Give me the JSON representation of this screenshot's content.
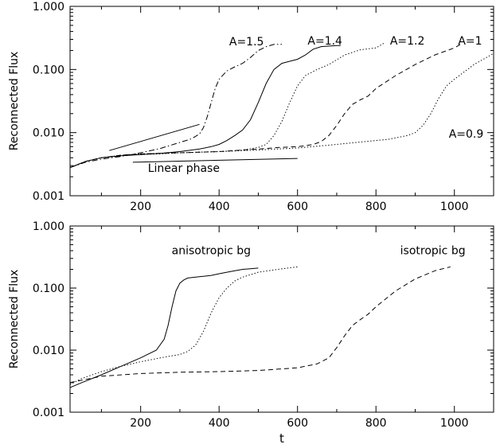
{
  "chart_data": [
    {
      "type": "line",
      "title": "",
      "xlabel": "",
      "ylabel": "Reconnected Flux",
      "yscale": "log",
      "xlim": [
        20,
        1100
      ],
      "ylim": [
        0.001,
        1.0
      ],
      "xticks": [
        200,
        400,
        600,
        800,
        1000
      ],
      "xtick_labels": [
        "200",
        "400",
        "600",
        "800",
        "1000"
      ],
      "yticks": [
        0.001,
        0.01,
        0.1,
        1.0
      ],
      "ytick_labels": [
        "0.001",
        "0.010",
        "0.100",
        "1.000"
      ],
      "grid": false,
      "series": [
        {
          "name": "A=1.5",
          "style": "dashdot",
          "x": [
            20,
            60,
            100,
            150,
            200,
            250,
            300,
            330,
            350,
            360,
            370,
            380,
            390,
            400,
            420,
            440,
            460,
            480,
            500,
            520,
            540,
            560
          ],
          "y": [
            0.0028,
            0.0034,
            0.0038,
            0.0042,
            0.0048,
            0.0056,
            0.007,
            0.008,
            0.0095,
            0.012,
            0.018,
            0.03,
            0.05,
            0.07,
            0.095,
            0.11,
            0.125,
            0.155,
            0.2,
            0.23,
            0.25,
            0.25
          ]
        },
        {
          "name": "A=1.4",
          "style": "solid",
          "x": [
            20,
            60,
            100,
            150,
            200,
            250,
            300,
            350,
            380,
            400,
            420,
            440,
            460,
            480,
            500,
            520,
            540,
            560,
            580,
            600,
            620,
            640,
            660,
            680,
            700,
            710
          ],
          "y": [
            0.0028,
            0.0035,
            0.004,
            0.0043,
            0.0045,
            0.0047,
            0.005,
            0.0055,
            0.006,
            0.0065,
            0.0075,
            0.009,
            0.011,
            0.016,
            0.03,
            0.06,
            0.1,
            0.125,
            0.135,
            0.145,
            0.17,
            0.21,
            0.23,
            0.235,
            0.24,
            0.24
          ]
        },
        {
          "name": "A=1.2",
          "style": "dotted",
          "x": [
            20,
            60,
            100,
            150,
            200,
            250,
            300,
            350,
            400,
            450,
            500,
            520,
            540,
            560,
            580,
            600,
            620,
            650,
            680,
            720,
            760,
            800,
            820
          ],
          "y": [
            0.0028,
            0.0035,
            0.004,
            0.0043,
            0.0045,
            0.0046,
            0.0048,
            0.0049,
            0.005,
            0.0052,
            0.0058,
            0.0065,
            0.009,
            0.015,
            0.03,
            0.055,
            0.08,
            0.1,
            0.12,
            0.17,
            0.205,
            0.22,
            0.26
          ]
        },
        {
          "name": "A=1",
          "style": "dashed",
          "x": [
            20,
            60,
            100,
            150,
            200,
            300,
            400,
            500,
            550,
            600,
            620,
            640,
            660,
            680,
            700,
            720,
            740,
            760,
            780,
            800,
            850,
            900,
            950,
            1000,
            1020
          ],
          "y": [
            0.0028,
            0.0035,
            0.004,
            0.0044,
            0.0046,
            0.0048,
            0.005,
            0.0055,
            0.0058,
            0.006,
            0.0062,
            0.0065,
            0.0072,
            0.009,
            0.013,
            0.02,
            0.028,
            0.033,
            0.038,
            0.05,
            0.08,
            0.12,
            0.17,
            0.22,
            0.26
          ]
        },
        {
          "name": "A=0.9",
          "style": "dotted",
          "x": [
            20,
            60,
            100,
            150,
            200,
            300,
            400,
            500,
            600,
            700,
            750,
            800,
            830,
            860,
            880,
            900,
            920,
            940,
            960,
            980,
            1000,
            1050,
            1100
          ],
          "y": [
            0.0028,
            0.0035,
            0.004,
            0.0044,
            0.0046,
            0.0048,
            0.005,
            0.0053,
            0.0057,
            0.0065,
            0.007,
            0.0075,
            0.0078,
            0.0085,
            0.009,
            0.01,
            0.013,
            0.02,
            0.035,
            0.055,
            0.07,
            0.12,
            0.18
          ]
        }
      ],
      "reference_lines": [
        {
          "x": [
            120,
            350
          ],
          "y": [
            0.0052,
            0.0135
          ]
        },
        {
          "x": [
            180,
            600
          ],
          "y": [
            0.0034,
            0.0039
          ]
        }
      ],
      "annotations": [
        {
          "text": "A=1.5",
          "x": 470,
          "y": 0.24
        },
        {
          "text": "A=1.4",
          "x": 670,
          "y": 0.25
        },
        {
          "text": "A=1.2",
          "x": 880,
          "y": 0.25
        },
        {
          "text": "A=1",
          "x": 1040,
          "y": 0.25
        },
        {
          "text": "A=0.9",
          "x": 1030,
          "y": 0.0083
        },
        {
          "text": "Linear phase",
          "x": 310,
          "y": 0.0024
        }
      ]
    },
    {
      "type": "line",
      "title": "",
      "xlabel": "t",
      "ylabel": "Reconnected Flux",
      "yscale": "log",
      "xlim": [
        20,
        1100
      ],
      "ylim": [
        0.001,
        1.0
      ],
      "xticks": [
        200,
        400,
        600,
        800,
        1000
      ],
      "xtick_labels": [
        "200",
        "400",
        "600",
        "800",
        "1000"
      ],
      "yticks": [
        0.001,
        0.01,
        0.1,
        1.0
      ],
      "ytick_labels": [
        "0.001",
        "0.010",
        "0.100",
        "1.000"
      ],
      "grid": false,
      "series": [
        {
          "style": "solid",
          "x": [
            20,
            50,
            100,
            150,
            200,
            240,
            260,
            270,
            280,
            290,
            300,
            310,
            320,
            340,
            360,
            380,
            400,
            420,
            440,
            460,
            480,
            500
          ],
          "y": [
            0.0025,
            0.003,
            0.004,
            0.0055,
            0.0075,
            0.01,
            0.015,
            0.025,
            0.05,
            0.09,
            0.12,
            0.135,
            0.145,
            0.15,
            0.155,
            0.16,
            0.17,
            0.18,
            0.19,
            0.2,
            0.205,
            0.21
          ]
        },
        {
          "style": "dotted",
          "x": [
            20,
            50,
            100,
            150,
            200,
            250,
            300,
            320,
            340,
            360,
            380,
            400,
            420,
            440,
            460,
            500,
            550,
            600
          ],
          "y": [
            0.0028,
            0.0035,
            0.0045,
            0.0055,
            0.0065,
            0.0075,
            0.0085,
            0.0095,
            0.012,
            0.02,
            0.04,
            0.07,
            0.1,
            0.13,
            0.15,
            0.18,
            0.2,
            0.22
          ]
        },
        {
          "style": "dashed",
          "x": [
            20,
            100,
            200,
            300,
            400,
            500,
            600,
            650,
            680,
            700,
            720,
            740,
            760,
            780,
            800,
            850,
            900,
            950,
            990
          ],
          "y": [
            0.003,
            0.0038,
            0.0042,
            0.0044,
            0.0045,
            0.0047,
            0.0052,
            0.006,
            0.0075,
            0.011,
            0.017,
            0.025,
            0.031,
            0.038,
            0.05,
            0.09,
            0.14,
            0.19,
            0.22
          ]
        }
      ],
      "annotations": [
        {
          "text": "anisotropic bg",
          "x": 380,
          "y": 0.35
        },
        {
          "text": "isotropic bg",
          "x": 945,
          "y": 0.35
        }
      ]
    }
  ]
}
